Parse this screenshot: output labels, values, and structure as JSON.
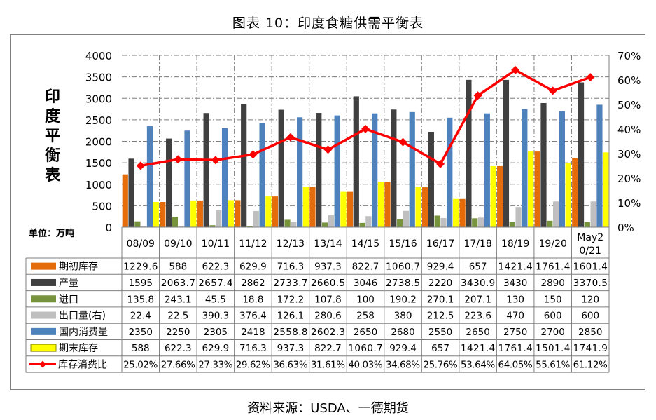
{
  "title": "图表 10：印度食糖供需平衡表",
  "source": "资料来源：USDA、一德期货",
  "colors": {
    "期初库存": "#e46c0a",
    "产量": "#404040",
    "进口": "#77933c",
    "出口量(右)": "#bfbfbf",
    "国内消费量": "#4f81bd",
    "期末库存": "#ffff00",
    "库存消费比": "#ff0000"
  },
  "chart_data": {
    "type": "bar",
    "title": "",
    "ylabel_chars": [
      "印",
      "度",
      "平",
      "衡",
      "表"
    ],
    "unit_label": "单位：万吨",
    "ylim": [
      0,
      4000
    ],
    "yticks": [
      "4000",
      "3500",
      "3000",
      "2500",
      "2000",
      "1500",
      "1000",
      "500",
      "0"
    ],
    "y2lim": [
      0,
      0.7
    ],
    "y2ticks": [
      "70%",
      "60%",
      "50%",
      "40%",
      "30%",
      "20%",
      "10%",
      "0%"
    ],
    "grid": true,
    "legend": "table-below",
    "categories": [
      "08/09",
      "09/10",
      "10/11",
      "11/12",
      "12/13",
      "13/14",
      "14/15",
      "15/16",
      "16/17",
      "17/18",
      "18/19",
      "19/20",
      "May20/21"
    ],
    "category_lines": [
      [
        "08/09"
      ],
      [
        "09/10"
      ],
      [
        "10/11"
      ],
      [
        "11/12"
      ],
      [
        "12/13"
      ],
      [
        "13/14"
      ],
      [
        "14/15"
      ],
      [
        "15/16"
      ],
      [
        "16/17"
      ],
      [
        "17/18"
      ],
      [
        "18/19"
      ],
      [
        "19/20"
      ],
      [
        "May2",
        "0/21"
      ]
    ],
    "series": [
      {
        "name": "期初库存",
        "kind": "bar",
        "values": [
          1229.6,
          588,
          622.3,
          629.9,
          716.3,
          937.3,
          822.7,
          1060.7,
          929.4,
          657,
          1421.4,
          1761.4,
          1601.4
        ],
        "labels": [
          "1229.6",
          "588",
          "622.3",
          "629.9",
          "716.3",
          "937.3",
          "822.7",
          "1060.7",
          "929.4",
          "657",
          "1421.4",
          "1761.4",
          "1601.4"
        ]
      },
      {
        "name": "产量",
        "kind": "bar",
        "values": [
          1595,
          2063.7,
          2657.4,
          2862,
          2733.7,
          2660.5,
          3046,
          2738.5,
          2220,
          3430.9,
          3430,
          2890,
          3370.5
        ],
        "labels": [
          "1595",
          "2063.7",
          "2657.4",
          "2862",
          "2733.7",
          "2660.5",
          "3046",
          "2738.5",
          "2220",
          "3430.9",
          "3430",
          "2890",
          "3370.5"
        ]
      },
      {
        "name": "进口",
        "kind": "bar",
        "values": [
          135.8,
          243.1,
          45.5,
          18.8,
          172.2,
          107.8,
          100,
          190.2,
          270.1,
          207.1,
          130,
          150,
          120
        ],
        "labels": [
          "135.8",
          "243.1",
          "45.5",
          "18.8",
          "172.2",
          "107.8",
          "100",
          "190.2",
          "270.1",
          "207.1",
          "130",
          "150",
          "120"
        ]
      },
      {
        "name": "出口量(右)",
        "kind": "bar",
        "values": [
          22.4,
          22.5,
          390.3,
          376.4,
          126.1,
          280.6,
          258,
          380,
          212.5,
          223.6,
          470,
          600,
          600
        ],
        "labels": [
          "22.4",
          "22.5",
          "390.3",
          "376.4",
          "126.1",
          "280.6",
          "258",
          "380",
          "212.5",
          "223.6",
          "470",
          "600",
          "600"
        ]
      },
      {
        "name": "国内消费量",
        "kind": "bar",
        "values": [
          2350,
          2250,
          2305,
          2418,
          2558.8,
          2602.3,
          2650,
          2680,
          2550,
          2650,
          2750,
          2700,
          2850
        ],
        "labels": [
          "2350",
          "2250",
          "2305",
          "2418",
          "2558.8",
          "2602.3",
          "2650",
          "2680",
          "2550",
          "2650",
          "2750",
          "2700",
          "2850"
        ]
      },
      {
        "name": "期末库存",
        "kind": "bar",
        "values": [
          588,
          622.3,
          629.9,
          716.3,
          937.3,
          822.7,
          1060.7,
          929.4,
          657,
          1421.4,
          1761.4,
          1501.4,
          1741.9
        ],
        "labels": [
          "588",
          "622.3",
          "629.9",
          "716.3",
          "937.3",
          "822.7",
          "1060.7",
          "929.4",
          "657",
          "1421.4",
          "1761.4",
          "1501.4",
          "1741.9"
        ]
      },
      {
        "name": "库存消费比",
        "kind": "line",
        "axis": "right",
        "values": [
          0.2502,
          0.2766,
          0.2733,
          0.2962,
          0.3663,
          0.3161,
          0.4003,
          0.3468,
          0.2576,
          0.5364,
          0.6405,
          0.5561,
          0.6112
        ],
        "labels": [
          "25.02%",
          "27.66%",
          "27.33%",
          "29.62%",
          "36.63%",
          "31.61%",
          "40.03%",
          "34.68%",
          "25.76%",
          "53.64%",
          "64.05%",
          "55.61%",
          "61.12%"
        ]
      }
    ]
  }
}
